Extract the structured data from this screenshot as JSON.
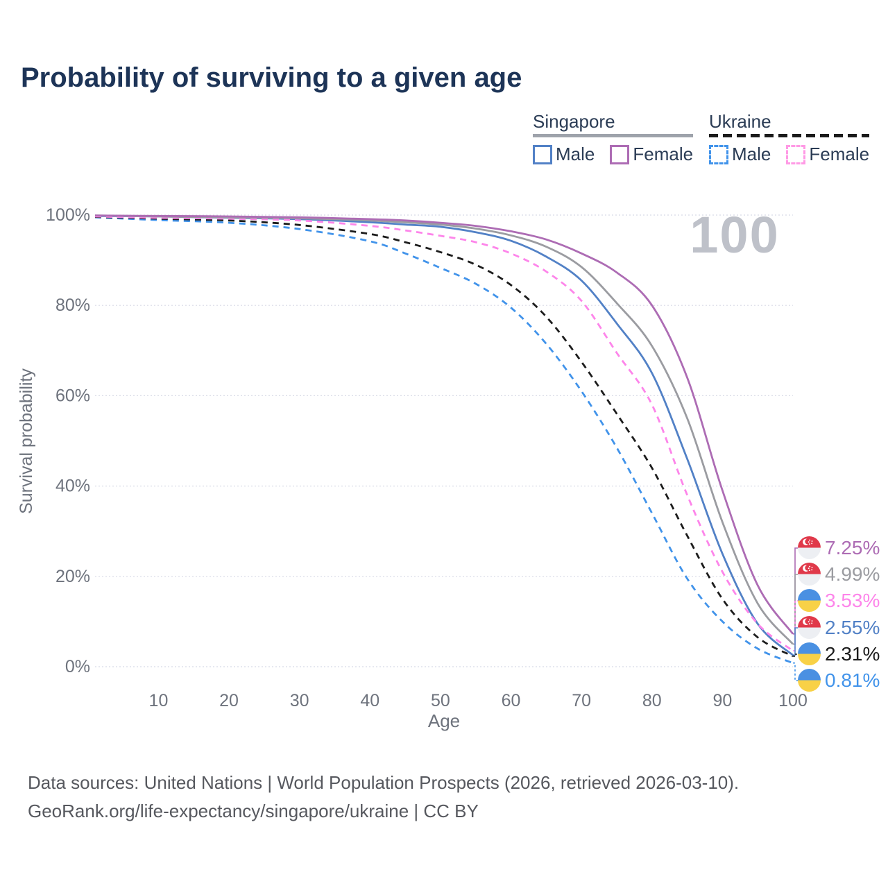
{
  "title": "Probability of surviving to a given age",
  "watermark": "100",
  "legend": {
    "groups": [
      {
        "label": "Singapore",
        "underline": {
          "style": "solid",
          "color": "#9ea3ab"
        },
        "items": [
          {
            "label": "Male",
            "color": "#5281c6",
            "dashed": false
          },
          {
            "label": "Female",
            "color": "#ad6cb4",
            "dashed": false
          }
        ]
      },
      {
        "label": "Ukraine",
        "underline": {
          "style": "dashed",
          "color": "#1b1b1b"
        },
        "items": [
          {
            "label": "Male",
            "color": "#4193ea",
            "dashed": true
          },
          {
            "label": "Female",
            "color": "#ff9ae5",
            "dashed": true
          }
        ]
      }
    ]
  },
  "chart_data": {
    "type": "line",
    "title": "Probability of surviving to a given age",
    "xlabel": "Age",
    "ylabel": "Survival probability",
    "xlim": [
      1,
      100
    ],
    "ylim": [
      0,
      100
    ],
    "grid": "horizontal-dotted",
    "grid_color": "#d8dae6",
    "axis_text_color": "#6e737d",
    "x_ticks": [
      10,
      20,
      30,
      40,
      50,
      60,
      70,
      80,
      90,
      100
    ],
    "y_ticks": [
      {
        "value": 0,
        "label": "0%"
      },
      {
        "value": 20,
        "label": "20%"
      },
      {
        "value": 40,
        "label": "40%"
      },
      {
        "value": 60,
        "label": "60%"
      },
      {
        "value": 80,
        "label": "80%"
      },
      {
        "value": 100,
        "label": "100%"
      }
    ],
    "ages": [
      1,
      10,
      20,
      30,
      40,
      45,
      50,
      55,
      60,
      65,
      70,
      75,
      80,
      85,
      90,
      95,
      100
    ],
    "series": [
      {
        "name": "Singapore Female",
        "country": "Singapore",
        "sex": "Female",
        "color": "#ad6cb4",
        "dashed": false,
        "flag": "sg",
        "end_label": "7.25%",
        "values": [
          99.9,
          99.8,
          99.7,
          99.5,
          99.1,
          98.8,
          98.3,
          97.6,
          96.4,
          94.6,
          91.5,
          87.3,
          80,
          64,
          39,
          18,
          7.25
        ]
      },
      {
        "name": "Singapore Both sexes",
        "country": "Singapore",
        "sex": "Both",
        "color": "#9b9ca1",
        "dashed": false,
        "flag": "sg",
        "end_label": "4.99%",
        "values": [
          99.9,
          99.7,
          99.5,
          99.3,
          98.8,
          98.4,
          97.9,
          97,
          95.5,
          93,
          88.5,
          80.5,
          71,
          55,
          32,
          14,
          4.99
        ]
      },
      {
        "name": "Ukraine Female",
        "country": "Ukraine",
        "sex": "Female",
        "color": "#fd85ea",
        "dashed": true,
        "flag": "ua",
        "end_label": "3.53%",
        "values": [
          99.7,
          99.4,
          99.2,
          98.8,
          97.6,
          96.6,
          95.4,
          94,
          91.5,
          87.5,
          81,
          69.5,
          58,
          38,
          21,
          9.5,
          3.53
        ]
      },
      {
        "name": "Singapore Male",
        "country": "Singapore",
        "sex": "Male",
        "color": "#5281c6",
        "dashed": false,
        "flag": "sg",
        "end_label": "2.55%",
        "values": [
          99.8,
          99.7,
          99.4,
          99.1,
          98.4,
          97.9,
          97.4,
          96.2,
          94.3,
          90.8,
          85.5,
          76,
          65,
          46,
          25,
          9.5,
          2.55
        ]
      },
      {
        "name": "Ukraine Both sexes",
        "country": "Ukraine",
        "sex": "Both",
        "color": "#1c1c1c",
        "dashed": true,
        "flag": "ua",
        "end_label": "2.31%",
        "values": [
          99.6,
          99.2,
          98.8,
          97.8,
          95.8,
          94,
          91.8,
          89,
          84.5,
          77.5,
          67.5,
          56,
          44,
          29,
          15,
          6.5,
          2.31
        ]
      },
      {
        "name": "Ukraine Male",
        "country": "Ukraine",
        "sex": "Male",
        "color": "#4193ea",
        "dashed": true,
        "flag": "ua",
        "end_label": "0.81%",
        "values": [
          99.5,
          98.9,
          98.3,
          96.9,
          94.2,
          91.5,
          88.3,
          84.8,
          79.5,
          71.5,
          61,
          48.5,
          34,
          19.5,
          10,
          4,
          0.81
        ]
      }
    ]
  },
  "footer": {
    "line1": "Data sources: United Nations | World Population Prospects (2026, retrieved 2026-03-10).",
    "line2": "GeoRank.org/life-expectancy/singapore/ukraine | CC BY"
  }
}
